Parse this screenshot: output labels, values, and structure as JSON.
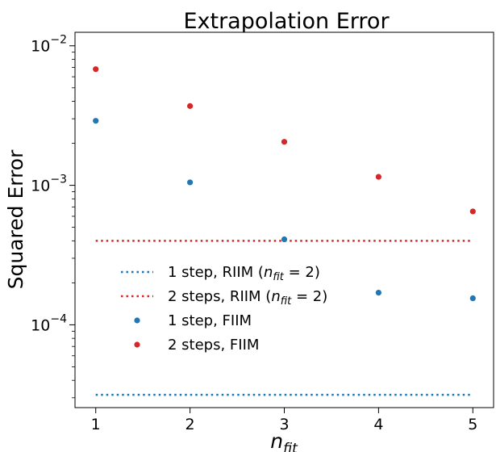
{
  "chart_data": {
    "type": "scatter",
    "title": "Extrapolation Error",
    "xlabel": "n_fit",
    "ylabel": "Squared Error",
    "y_scale": "log",
    "xlim": [
      0.78,
      5.22
    ],
    "ylim": [
      2.55e-05,
      0.0125
    ],
    "x_ticks": [
      1,
      2,
      3,
      4,
      5
    ],
    "y_ticks": [
      {
        "value": 0.0001,
        "base": "10",
        "exp": "−4"
      },
      {
        "value": 0.001,
        "base": "10",
        "exp": "−3"
      },
      {
        "value": 0.01,
        "base": "10",
        "exp": "−2"
      }
    ],
    "grid": false,
    "legend_position": "center-left",
    "series": [
      {
        "name": "1 step, RIIM (n_fit = 2)",
        "label_main": "1 step, RIIM (",
        "label_math": "n",
        "label_sub": "fit",
        "label_tail": " = 2)",
        "kind": "hline",
        "style": "dotted",
        "color": "#1f77b4",
        "value": 3.15e-05,
        "x_range": [
          1,
          5
        ]
      },
      {
        "name": "2 steps, RIIM (n_fit = 2)",
        "label_main": "2 steps, RIIM (",
        "label_math": "n",
        "label_sub": "fit",
        "label_tail": " = 2)",
        "kind": "hline",
        "style": "dotted",
        "color": "#d62728",
        "value": 0.0004,
        "x_range": [
          1,
          5
        ]
      },
      {
        "name": "1 step, FIIM",
        "label_main": "1 step, FIIM",
        "kind": "points",
        "color": "#1f77b4",
        "x": [
          1,
          2,
          3,
          4,
          5
        ],
        "y": [
          0.0029,
          0.00105,
          0.00041,
          0.00017,
          0.000155
        ]
      },
      {
        "name": "2 steps, FIIM",
        "label_main": "2 steps, FIIM",
        "kind": "points",
        "color": "#d62728",
        "x": [
          1,
          2,
          3,
          4,
          5
        ],
        "y": [
          0.0068,
          0.0037,
          0.00205,
          0.00115,
          0.00065
        ]
      }
    ]
  }
}
